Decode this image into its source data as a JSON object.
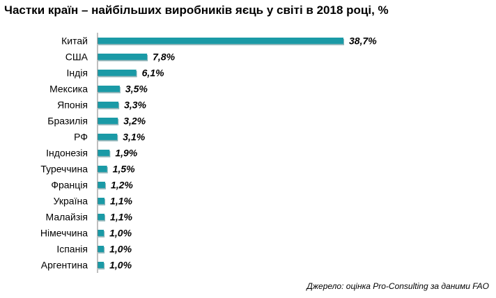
{
  "title": "Частки країн – найбільших виробників яєць у світі в 2018 році, %",
  "source": "Джерело: оцінка Pro-Consulting за даними FAO",
  "colors": {
    "bar": "#1a9aa6",
    "bar_shadow": "#0c5f68",
    "axis": "#7f7f7f"
  },
  "chart_data": {
    "type": "bar",
    "orientation": "horizontal",
    "categories": [
      "Китай",
      "США",
      "Індія",
      "Мексика",
      "Японія",
      "Бразилія",
      "РФ",
      "Індонезія",
      "Туреччина",
      "Франція",
      "Україна",
      "Малайзія",
      "Німеччина",
      "Іспанія",
      "Аргентина"
    ],
    "values": [
      38.7,
      7.8,
      6.1,
      3.5,
      3.3,
      3.2,
      3.1,
      1.9,
      1.5,
      1.2,
      1.1,
      1.1,
      1.0,
      1.0,
      1.0
    ],
    "value_labels": [
      "38,7%",
      "7,8%",
      "6,1%",
      "3,5%",
      "3,3%",
      "3,2%",
      "3,1%",
      "1,9%",
      "1,5%",
      "1,2%",
      "1,1%",
      "1,1%",
      "1,0%",
      "1,0%",
      "1,0%"
    ],
    "xlim": [
      0,
      38.7
    ],
    "grid": false,
    "legend": "none"
  }
}
